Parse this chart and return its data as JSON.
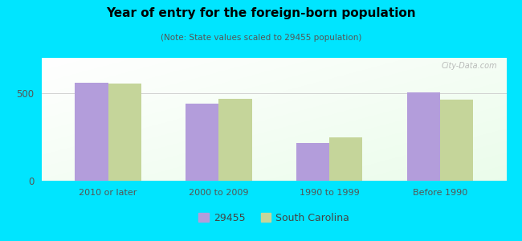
{
  "title": "Year of entry for the foreign-born population",
  "subtitle": "(Note: State values scaled to 29455 population)",
  "categories": [
    "2010 or later",
    "2000 to 2009",
    "1990 to 1999",
    "Before 1990"
  ],
  "values_29455": [
    560,
    440,
    215,
    505
  ],
  "values_sc": [
    553,
    468,
    248,
    462
  ],
  "color_29455": "#b39ddb",
  "color_sc": "#c5d59a",
  "background_outer": "#00e5ff",
  "ylim": [
    0,
    700
  ],
  "yticks": [
    0,
    500
  ],
  "bar_width": 0.3,
  "legend_label_1": "29455",
  "legend_label_2": "South Carolina",
  "watermark": "City-Data.com"
}
